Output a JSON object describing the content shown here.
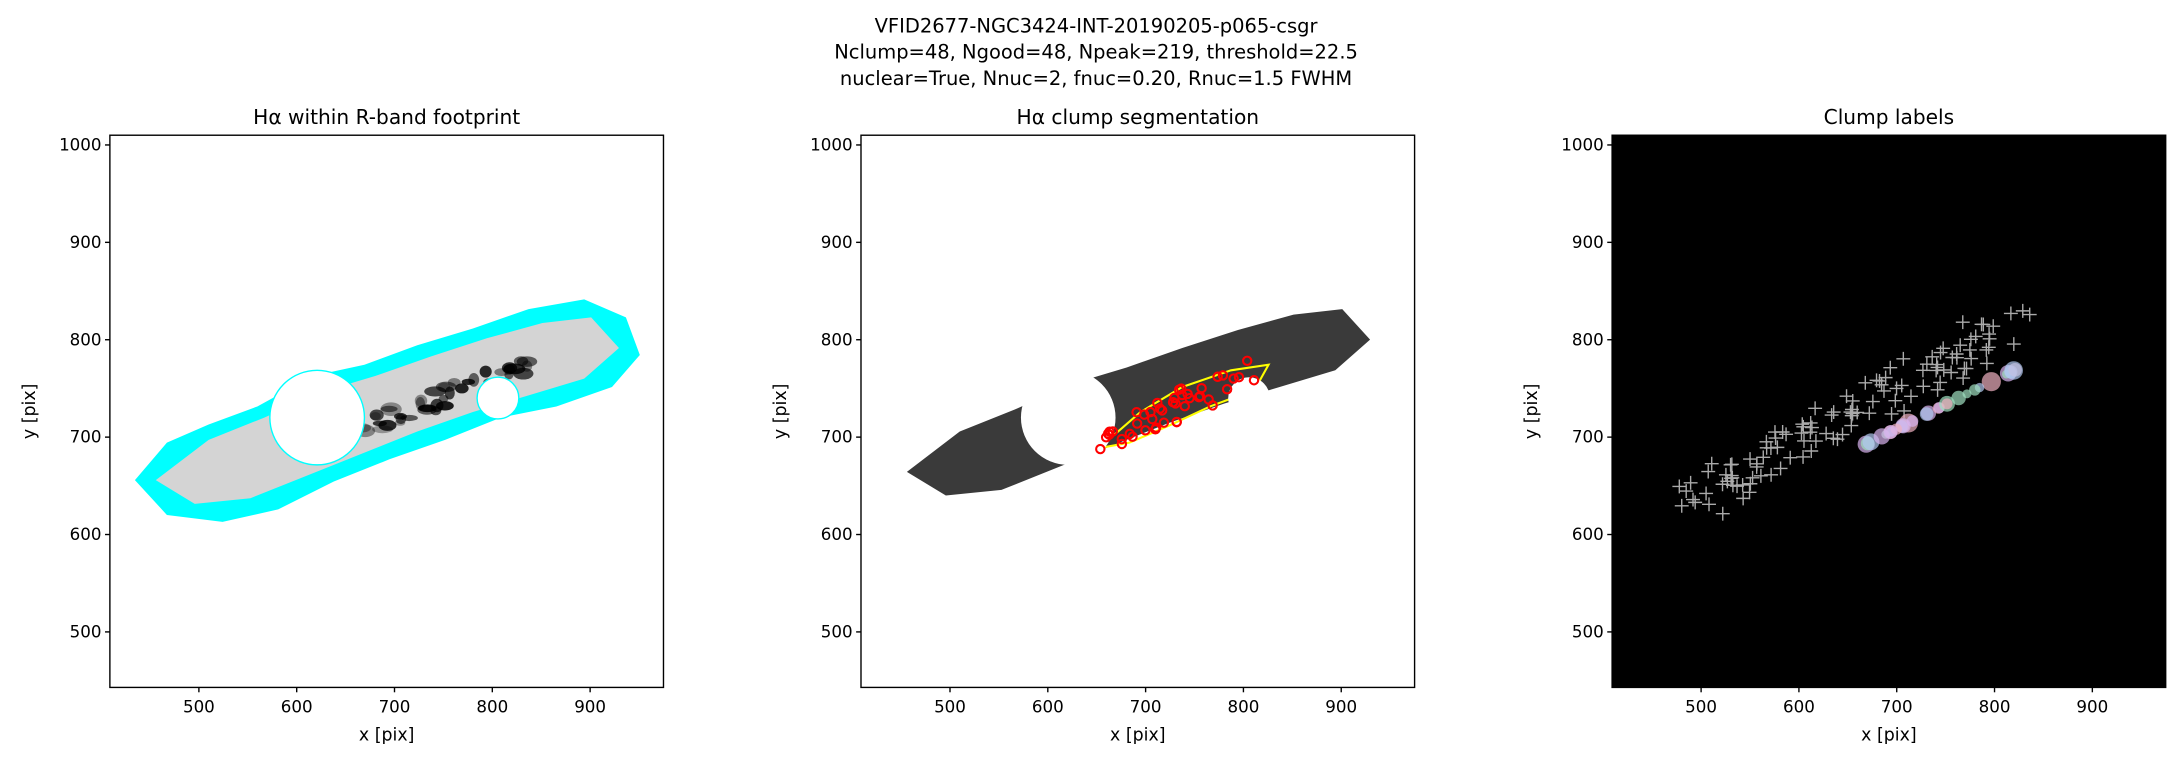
{
  "figure": {
    "title_lines": [
      "VFID2677-NGC3424-INT-20190205-p065-csgr",
      "Nclump=48, Ngood=48, Npeak=219, threshold=22.5",
      "nuclear=True, Nnuc=2, fnuc=0.20, Rnuc=1.5 FWHM"
    ]
  },
  "chart_data": [
    {
      "type": "image",
      "title": "Hα within R-band footprint",
      "xlabel": "x [pix]",
      "ylabel": "y [pix]",
      "xlim": [
        409,
        975
      ],
      "ylim": [
        443,
        1010
      ],
      "xticks": [
        500,
        600,
        700,
        800,
        900
      ],
      "yticks": [
        500,
        600,
        700,
        800,
        900,
        1000
      ],
      "background": "#ffffff"
    },
    {
      "type": "image",
      "title": "Hα clump segmentation",
      "xlabel": "x [pix]",
      "ylabel": "y [pix]",
      "xlim": [
        409,
        975
      ],
      "ylim": [
        443,
        1010
      ],
      "xticks": [
        500,
        600,
        700,
        800,
        900
      ],
      "yticks": [
        500,
        600,
        700,
        800,
        900,
        1000
      ],
      "background": "#ffffff"
    },
    {
      "type": "image",
      "title": "Clump labels",
      "xlabel": "x [pix]",
      "ylabel": "y [pix]",
      "xlim": [
        409,
        975
      ],
      "ylim": [
        443,
        1010
      ],
      "xticks": [
        500,
        600,
        700,
        800,
        900
      ],
      "yticks": [
        500,
        600,
        700,
        800,
        900,
        1000
      ],
      "background": "#000000"
    }
  ]
}
